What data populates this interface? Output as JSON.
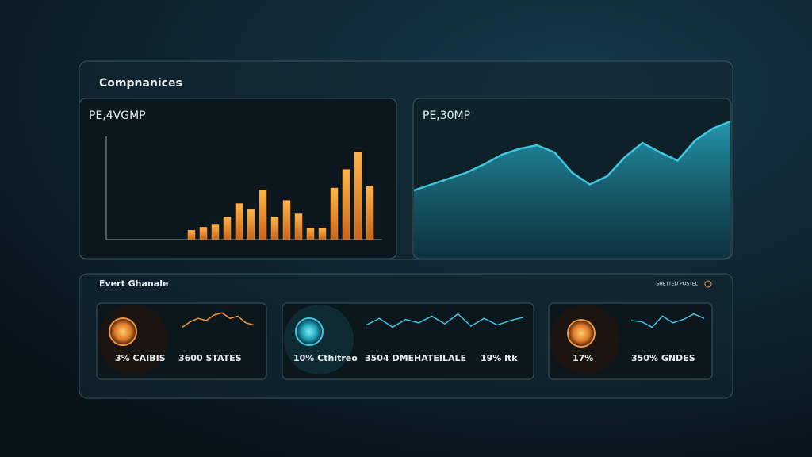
{
  "header": {
    "title": "Compnanices"
  },
  "panels": [
    {
      "title": "PE,4VGMP",
      "bars": {
        "values": [
          9,
          12,
          15,
          22,
          35,
          29,
          48,
          22,
          38,
          25,
          11,
          11,
          50,
          68,
          85,
          52
        ],
        "ylim": [
          0,
          100
        ],
        "color": "#f0953a"
      }
    },
    {
      "title": "PE,30MP",
      "wave": {
        "values": [
          40,
          45,
          50,
          55,
          62,
          70,
          75,
          78,
          72,
          55,
          45,
          52,
          68,
          80,
          72,
          65,
          82,
          92,
          98
        ],
        "ylim": [
          0,
          100
        ],
        "color": "#3fc6e0"
      }
    }
  ],
  "events": {
    "title": "Evert Ghanale",
    "badge": "SHETTED POSTEL",
    "cards": [
      {
        "stats": [
          "3% CAIBIS",
          "3600 STATES"
        ],
        "spark": [
          20,
          45,
          60,
          50,
          75,
          85,
          60,
          70,
          40,
          30
        ],
        "color": "#f0953a"
      },
      {
        "stats": [
          "10% Cthitreo",
          "3504 DMEHATEILALE",
          "19% ltk"
        ],
        "spark": [
          30,
          60,
          20,
          55,
          40,
          70,
          35,
          80,
          25,
          60,
          30,
          50,
          65
        ],
        "color": "#3fc6e0"
      },
      {
        "stats": [
          "17%",
          "350% GNDES"
        ],
        "spark": [
          50,
          45,
          20,
          70,
          40,
          55,
          80,
          60
        ],
        "color": "#3fc6e0"
      }
    ]
  }
}
